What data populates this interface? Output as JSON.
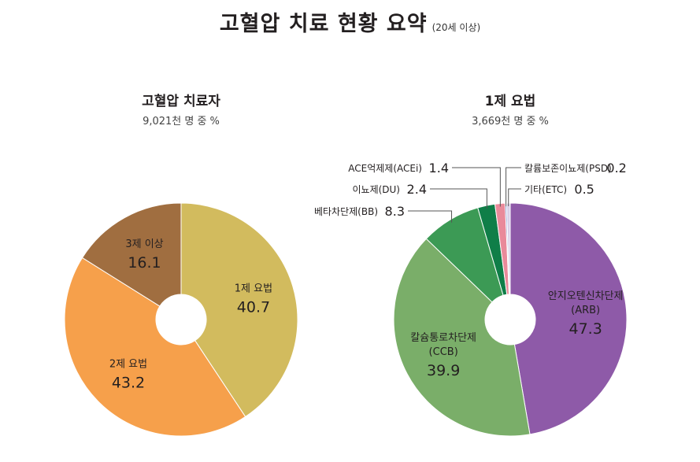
{
  "title": {
    "main": "고혈압 치료 현황 요약",
    "sub": "(20세 이상)"
  },
  "chart_data": [
    {
      "type": "pie",
      "title": "고혈압 치료자",
      "subtitle": "9,021천 명 중 %",
      "slices": [
        {
          "label": "1제 요법",
          "value": 40.7,
          "color": "#d2bb5e"
        },
        {
          "label": "2제 요법",
          "value": 43.2,
          "color": "#f6a04b"
        },
        {
          "label": "3제 이상",
          "value": 16.1,
          "color": "#a06e40"
        }
      ]
    },
    {
      "type": "pie",
      "title": "1제 요법",
      "subtitle": "3,669천 명 중 %",
      "slices": [
        {
          "label": "안지오텐신차단제",
          "label2": "(ARB)",
          "value": 47.3,
          "color": "#8e5aa8"
        },
        {
          "label": "칼슘통로차단제",
          "label2": "(CCB)",
          "value": 39.9,
          "color": "#7aae69"
        },
        {
          "label": "베타차단제(BB)",
          "value": 8.3,
          "color": "#3c9a55"
        },
        {
          "label": "이뇨제(DU)",
          "value": 2.4,
          "color": "#0f7e48"
        },
        {
          "label": "ACE억제제(ACEi)",
          "value": 1.4,
          "color": "#e98a9a"
        },
        {
          "label": "칼륨보존이뇨제(PSD)",
          "value": 0.2,
          "color": "#6b7fc0"
        },
        {
          "label": "기타(ETC)",
          "value": 0.5,
          "color": "#d8d0e8"
        }
      ]
    }
  ]
}
